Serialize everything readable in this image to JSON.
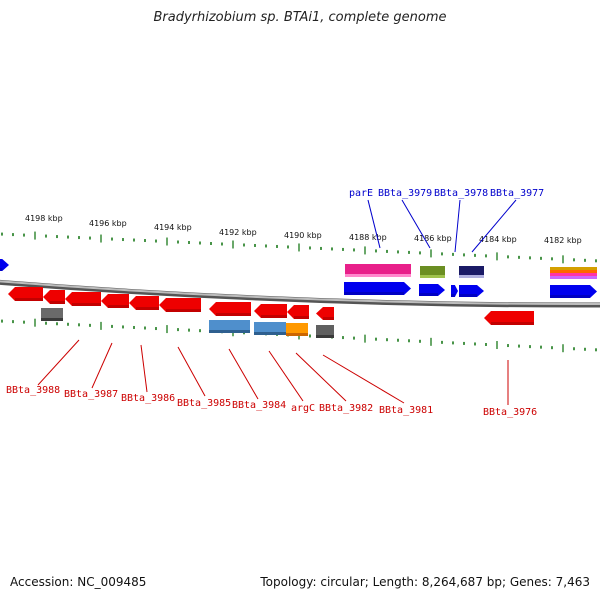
{
  "title": "Bradyrhizobium sp. BTAi1, complete genome",
  "footer": {
    "accession": "Accession: NC_009485",
    "summary": "Topology: circular; Length: 8,264,687 bp; Genes: 7,463"
  },
  "scale_labels": [
    "4198 kbp",
    "4196 kbp",
    "4194 kbp",
    "4192 kbp",
    "4190 kbp",
    "4188 kbp",
    "4186 kbp",
    "4184 kbp",
    "4182 kbp"
  ],
  "colors": {
    "forward_label": "#0000cc",
    "reverse_label": "#cc0000",
    "backbone": "#888888",
    "ticks": "#1a7a1a"
  },
  "labels_top": [
    "parE",
    "BBta_3979",
    "BBta_3978",
    "BBta_3977"
  ],
  "labels_bottom": [
    "BBta_3988",
    "BBta_3987",
    "BBta_3986",
    "BBta_3985",
    "BBta_3984",
    "argC",
    "BBta_3982",
    "BBta_3981",
    "BBta_3976"
  ]
}
